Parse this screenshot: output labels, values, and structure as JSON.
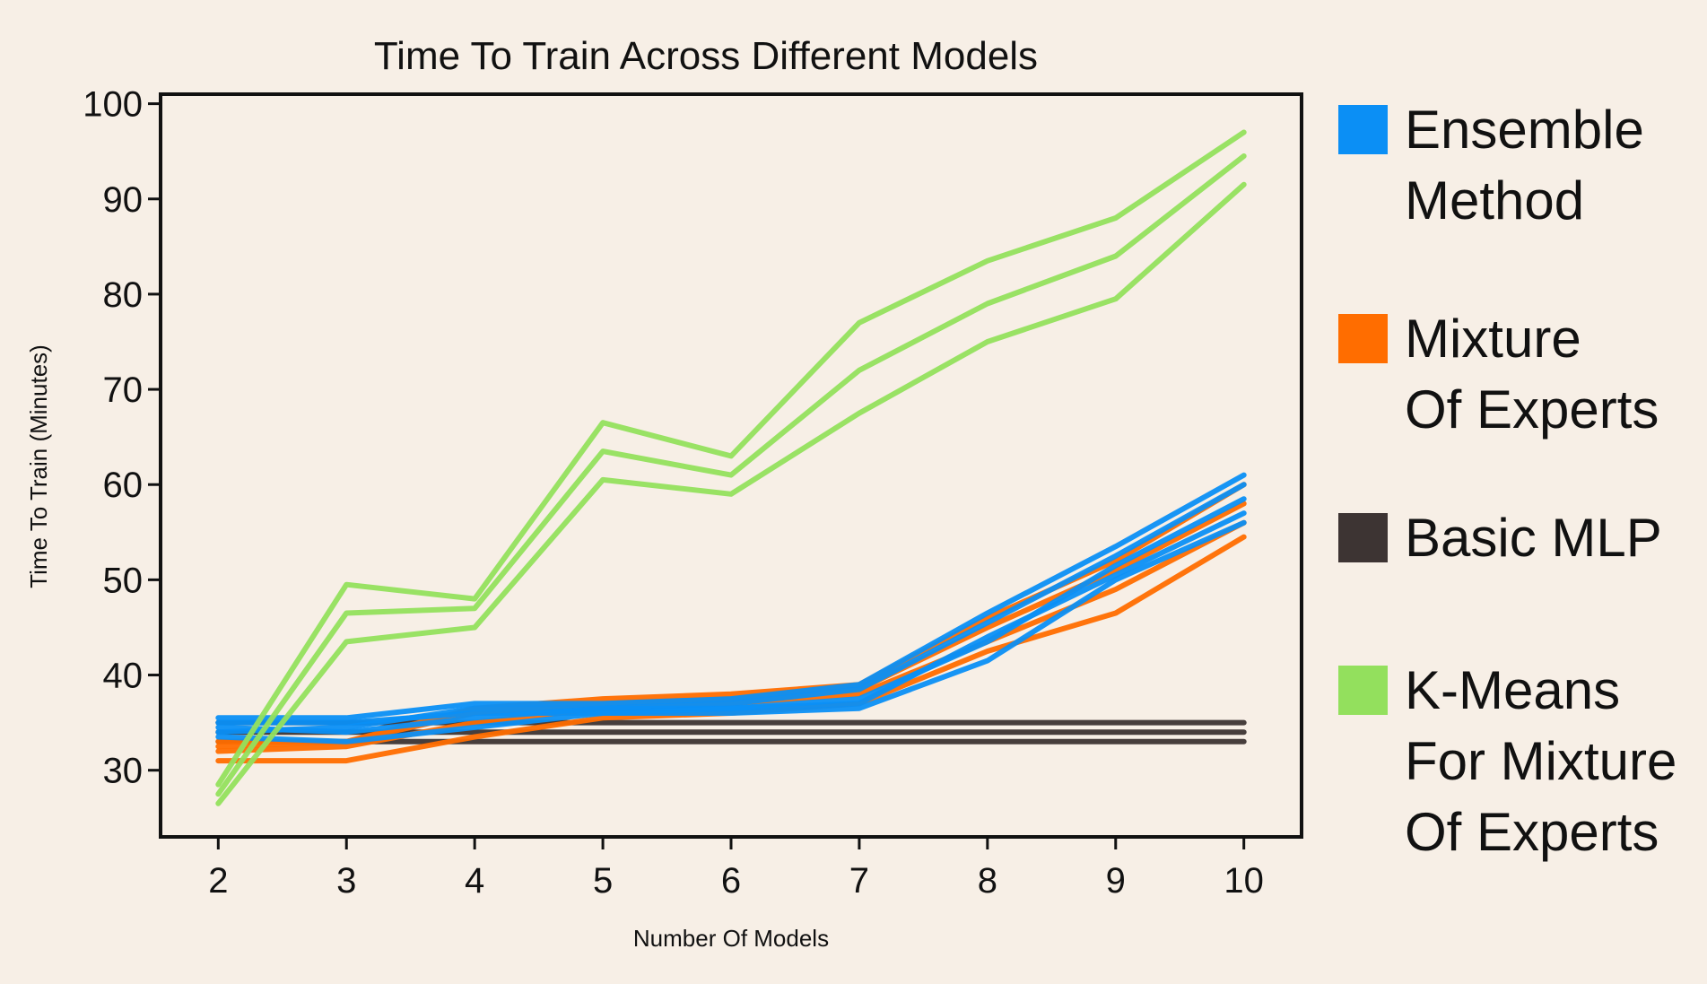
{
  "chart_data": {
    "type": "line",
    "title": "Time To Train Across Different Models",
    "xlabel": "Number Of Models",
    "ylabel": "Time To Train (Minutes)",
    "x": [
      2,
      3,
      4,
      5,
      6,
      7,
      8,
      9,
      10
    ],
    "x_ticks": [
      "2",
      "3",
      "4",
      "5",
      "6",
      "7",
      "8",
      "9",
      "10"
    ],
    "y_ticks": [
      "30",
      "40",
      "50",
      "60",
      "70",
      "80",
      "90",
      "100"
    ],
    "xlim": [
      1.55,
      10.45
    ],
    "ylim": [
      23.0,
      101.0
    ],
    "grid": false,
    "legend_position": "right",
    "legend": [
      {
        "label_lines": [
          "Ensemble",
          "Method"
        ],
        "color": "#0b8ff5"
      },
      {
        "label_lines": [
          "Mixture",
          "Of Experts"
        ],
        "color": "#ff6d00"
      },
      {
        "label_lines": [
          "Basic MLP"
        ],
        "color": "#3d3433"
      },
      {
        "label_lines": [
          "K-Means",
          "For Mixture",
          "Of Experts"
        ],
        "color": "#93e05d"
      }
    ],
    "groups": [
      {
        "name": "Basic MLP",
        "color": "#3d3433",
        "series": [
          [
            35.0,
            35.0,
            35.0,
            35.0,
            35.0,
            35.0,
            35.0,
            35.0,
            35.0
          ],
          [
            34.0,
            34.0,
            34.0,
            34.0,
            34.0,
            34.0,
            34.0,
            34.0,
            34.0
          ],
          [
            33.0,
            33.0,
            33.0,
            33.0,
            33.0,
            33.0,
            33.0,
            33.0,
            33.0
          ]
        ]
      },
      {
        "name": "Mixture Of Experts",
        "color": "#ff6d00",
        "series": [
          [
            31.0,
            31.0,
            33.5,
            35.5,
            36.0,
            37.0,
            42.5,
            46.5,
            54.5
          ],
          [
            32.0,
            32.5,
            35.0,
            36.5,
            37.0,
            38.0,
            43.5,
            49.0,
            56.0
          ],
          [
            33.0,
            33.0,
            36.0,
            37.0,
            37.5,
            38.5,
            45.0,
            51.0,
            58.0
          ],
          [
            32.5,
            33.0,
            36.5,
            37.5,
            38.0,
            39.0,
            46.0,
            52.0,
            60.0
          ]
        ]
      },
      {
        "name": "Ensemble Method",
        "color": "#0b8ff5",
        "series": [
          [
            35.5,
            35.5,
            37.0,
            37.0,
            37.5,
            39.0,
            46.5,
            53.5,
            61.0
          ],
          [
            34.0,
            34.5,
            36.5,
            36.5,
            37.0,
            38.5,
            45.5,
            52.5,
            60.0
          ],
          [
            33.5,
            33.0,
            34.5,
            36.0,
            36.0,
            36.5,
            41.5,
            50.0,
            56.0
          ],
          [
            34.5,
            34.0,
            35.5,
            36.5,
            36.5,
            37.5,
            43.5,
            51.5,
            58.5
          ],
          [
            35.0,
            35.0,
            36.0,
            36.0,
            36.5,
            37.0,
            44.0,
            50.5,
            57.0
          ]
        ]
      },
      {
        "name": "K-Means For Mixture Of Experts",
        "color": "#93e05d",
        "series": [
          [
            28.5,
            49.5,
            48.0,
            66.5,
            63.0,
            77.0,
            83.5,
            88.0,
            97.0
          ],
          [
            27.5,
            46.5,
            47.0,
            63.5,
            61.0,
            72.0,
            79.0,
            84.0,
            94.5
          ],
          [
            26.5,
            43.5,
            45.0,
            60.5,
            59.0,
            67.5,
            75.0,
            79.5,
            91.5
          ]
        ]
      }
    ]
  }
}
